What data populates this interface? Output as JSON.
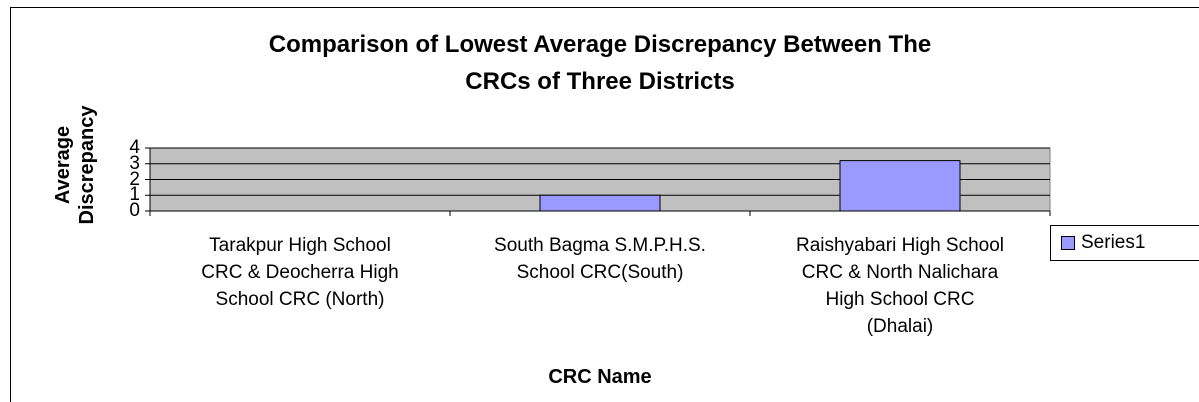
{
  "chart_data": {
    "type": "bar",
    "title": "Comparison of Lowest Average Discrepancy Between The CRCs of Three Districts",
    "x_label": "CRC Name",
    "y_label": "Average Discrepancy",
    "categories": [
      "Tarakpur High School CRC & Deocherra High School CRC (North)",
      "South Bagma S.M.P.H.S. School CRC(South)",
      "Raishyabari High School CRC & North Nalichara High School CRC (Dhalai)"
    ],
    "series": [
      {
        "name": "Series1",
        "color": "#9999ff",
        "values": [
          0,
          1,
          3.2
        ]
      }
    ],
    "ylim": [
      0,
      4
    ],
    "yticks": [
      0,
      1,
      2,
      3,
      4
    ],
    "grid": true,
    "legend": "right"
  }
}
